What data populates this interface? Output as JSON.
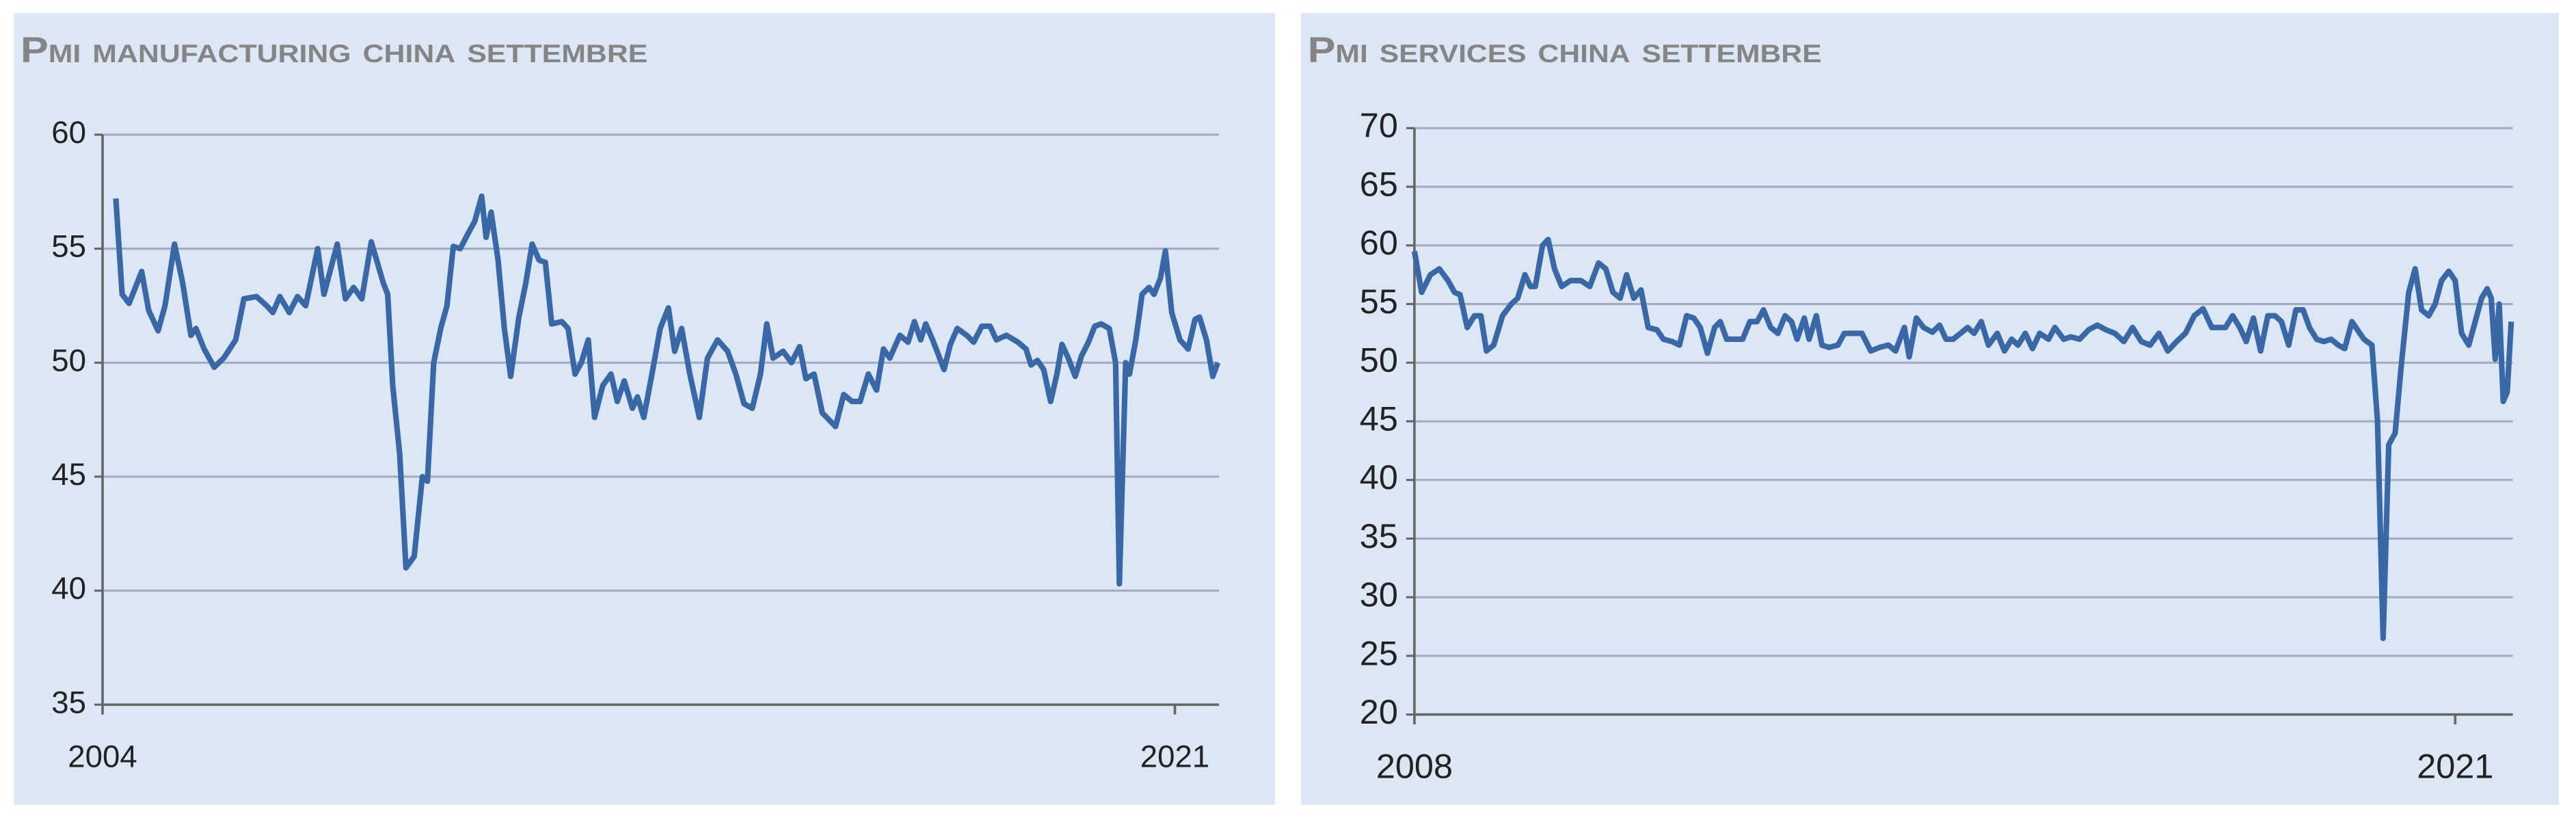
{
  "chart_data": [
    {
      "type": "line",
      "title": "Pmi manufacturing china settembre",
      "color": "#3a68a6",
      "xlim": [
        2004,
        2021.7
      ],
      "xticks": [
        2004,
        2021
      ],
      "ylim": [
        35,
        60
      ],
      "yticks": [
        35,
        40,
        45,
        50,
        55,
        60
      ],
      "grid": true,
      "x": [
        2004.21,
        2004.31,
        2004.42,
        2004.62,
        2004.73,
        2004.88,
        2004.99,
        2005.14,
        2005.27,
        2005.4,
        2005.48,
        2005.61,
        2005.77,
        2005.92,
        2006.11,
        2006.24,
        2006.44,
        2006.6,
        2006.7,
        2006.81,
        2006.96,
        2007.09,
        2007.22,
        2007.41,
        2007.51,
        2007.72,
        2007.85,
        2007.98,
        2008.11,
        2008.26,
        2008.45,
        2008.52,
        2008.6,
        2008.71,
        2008.81,
        2008.94,
        2009.07,
        2009.15,
        2009.25,
        2009.36,
        2009.46,
        2009.56,
        2009.67,
        2009.82,
        2009.9,
        2010.01,
        2010.08,
        2010.16,
        2010.27,
        2010.37,
        2010.47,
        2010.6,
        2010.71,
        2010.81,
        2010.92,
        2011.02,
        2011.12,
        2011.28,
        2011.38,
        2011.49,
        2011.59,
        2011.7,
        2011.8,
        2011.93,
        2012.06,
        2012.16,
        2012.27,
        2012.4,
        2012.48,
        2012.58,
        2012.71,
        2012.84,
        2012.97,
        2013.07,
        2013.18,
        2013.31,
        2013.46,
        2013.59,
        2013.75,
        2013.91,
        2014.04,
        2014.17,
        2014.3,
        2014.43,
        2014.53,
        2014.63,
        2014.79,
        2014.92,
        2015.05,
        2015.15,
        2015.28,
        2015.41,
        2015.62,
        2015.75,
        2015.88,
        2016.01,
        2016.14,
        2016.27,
        2016.38,
        2016.48,
        2016.64,
        2016.77,
        2016.87,
        2016.97,
        2017.05,
        2017.16,
        2017.34,
        2017.44,
        2017.55,
        2017.7,
        2017.81,
        2017.94,
        2018.07,
        2018.17,
        2018.33,
        2018.51,
        2018.64,
        2018.72,
        2018.82,
        2018.92,
        2019.03,
        2019.13,
        2019.21,
        2019.31,
        2019.42,
        2019.52,
        2019.63,
        2019.73,
        2019.83,
        2019.96,
        2020.06,
        2020.12,
        2020.22,
        2020.28,
        2020.38,
        2020.48,
        2020.59,
        2020.67,
        2020.77,
        2020.85,
        2020.95,
        2021.08,
        2021.21,
        2021.32,
        2021.39,
        2021.5,
        2021.6,
        2021.68
      ],
      "values": [
        57.2,
        53.0,
        52.6,
        54.0,
        52.3,
        51.4,
        52.5,
        55.2,
        53.5,
        51.2,
        51.5,
        50.6,
        49.8,
        50.2,
        51.0,
        52.8,
        52.9,
        52.5,
        52.2,
        52.9,
        52.2,
        52.9,
        52.5,
        55.0,
        53.0,
        55.2,
        52.8,
        53.3,
        52.8,
        55.3,
        53.5,
        53.0,
        49.0,
        46.0,
        41.0,
        41.5,
        45.0,
        44.8,
        50.0,
        51.5,
        52.5,
        55.1,
        55.0,
        55.8,
        56.2,
        57.3,
        55.5,
        56.6,
        54.5,
        51.5,
        49.4,
        52.0,
        53.5,
        55.2,
        54.5,
        54.4,
        51.7,
        51.8,
        51.5,
        49.5,
        50.0,
        51.0,
        47.6,
        49.0,
        49.5,
        48.3,
        49.2,
        48.0,
        48.5,
        47.6,
        49.5,
        51.5,
        52.4,
        50.5,
        51.5,
        49.5,
        47.6,
        50.2,
        51.0,
        50.5,
        49.5,
        48.2,
        48.0,
        49.5,
        51.7,
        50.2,
        50.5,
        50.0,
        50.7,
        49.3,
        49.5,
        47.8,
        47.2,
        48.6,
        48.3,
        48.3,
        49.5,
        48.8,
        50.6,
        50.2,
        51.2,
        50.9,
        51.8,
        51.0,
        51.7,
        51.0,
        49.7,
        50.8,
        51.5,
        51.2,
        50.9,
        51.6,
        51.6,
        51.0,
        51.2,
        50.9,
        50.6,
        49.9,
        50.1,
        49.7,
        48.3,
        49.5,
        50.8,
        50.2,
        49.4,
        50.3,
        50.9,
        51.6,
        51.7,
        51.5,
        50.0,
        40.3,
        50.0,
        49.5,
        51.0,
        53.0,
        53.3,
        53.0,
        53.7,
        54.9,
        52.2,
        51.0,
        50.6,
        51.9,
        52.0,
        51.0,
        49.4,
        50.0
      ]
    },
    {
      "type": "line",
      "title": "Pmi services china settembre",
      "color": "#3a68a6",
      "xlim": [
        2008,
        2021.72
      ],
      "xticks": [
        2008,
        2021
      ],
      "ylim": [
        20,
        70
      ],
      "yticks": [
        20,
        25,
        30,
        35,
        40,
        45,
        50,
        55,
        60,
        65,
        70
      ],
      "grid": true,
      "x": [
        2008.0,
        2008.09,
        2008.2,
        2008.31,
        2008.42,
        2008.5,
        2008.57,
        2008.66,
        2008.75,
        2008.83,
        2008.9,
        2008.99,
        2009.1,
        2009.21,
        2009.29,
        2009.38,
        2009.45,
        2009.51,
        2009.6,
        2009.67,
        2009.75,
        2009.84,
        2009.95,
        2010.08,
        2010.19,
        2010.3,
        2010.39,
        2010.48,
        2010.57,
        2010.65,
        2010.74,
        2010.83,
        2010.92,
        2011.03,
        2011.11,
        2011.22,
        2011.31,
        2011.4,
        2011.49,
        2011.57,
        2011.66,
        2011.75,
        2011.82,
        2011.9,
        2011.99,
        2012.1,
        2012.19,
        2012.28,
        2012.36,
        2012.45,
        2012.54,
        2012.63,
        2012.71,
        2012.78,
        2012.87,
        2012.93,
        2013.02,
        2013.09,
        2013.18,
        2013.29,
        2013.37,
        2013.48,
        2013.59,
        2013.7,
        2013.81,
        2013.92,
        2014.01,
        2014.12,
        2014.18,
        2014.27,
        2014.36,
        2014.47,
        2014.56,
        2014.64,
        2014.73,
        2014.82,
        2014.91,
        2014.99,
        2015.08,
        2015.17,
        2015.28,
        2015.37,
        2015.46,
        2015.54,
        2015.63,
        2015.72,
        2015.81,
        2015.92,
        2016.0,
        2016.11,
        2016.2,
        2016.31,
        2016.42,
        2016.53,
        2016.64,
        2016.75,
        2016.86,
        2016.97,
        2017.08,
        2017.19,
        2017.3,
        2017.41,
        2017.52,
        2017.63,
        2017.74,
        2017.85,
        2017.96,
        2018.04,
        2018.13,
        2018.22,
        2018.31,
        2018.39,
        2018.48,
        2018.57,
        2018.66,
        2018.75,
        2018.83,
        2018.92,
        2019.01,
        2019.1,
        2019.18,
        2019.27,
        2019.36,
        2019.45,
        2019.54,
        2019.62,
        2019.71,
        2019.78,
        2019.86,
        2019.96,
        2020.03,
        2020.1,
        2020.17,
        2020.25,
        2020.33,
        2020.42,
        2020.5,
        2020.58,
        2020.67,
        2020.75,
        2020.83,
        2020.92,
        2021.0,
        2021.08,
        2021.17,
        2021.25,
        2021.33,
        2021.4,
        2021.45,
        2021.5,
        2021.55,
        2021.6,
        2021.65,
        2021.7
      ],
      "values": [
        59.5,
        56.0,
        57.5,
        58.0,
        57.0,
        56.0,
        55.8,
        53.0,
        54.0,
        54.0,
        51.0,
        51.5,
        54.0,
        55.0,
        55.5,
        57.5,
        56.5,
        56.5,
        60.0,
        60.5,
        58.0,
        56.5,
        57.0,
        57.0,
        56.5,
        58.5,
        58.0,
        56.0,
        55.5,
        57.5,
        55.5,
        56.2,
        53.0,
        52.8,
        52.0,
        51.8,
        51.5,
        54.0,
        53.8,
        53.0,
        50.8,
        53.0,
        53.5,
        52.0,
        52.0,
        52.0,
        53.5,
        53.5,
        54.5,
        53.0,
        52.5,
        54.0,
        53.5,
        52.0,
        53.8,
        52.0,
        54.0,
        51.5,
        51.3,
        51.5,
        52.5,
        52.5,
        52.5,
        51.0,
        51.3,
        51.5,
        51.0,
        53.0,
        50.5,
        53.8,
        53.0,
        52.6,
        53.2,
        52.0,
        52.0,
        52.5,
        53.0,
        52.5,
        53.5,
        51.5,
        52.5,
        51.0,
        52.0,
        51.5,
        52.5,
        51.2,
        52.5,
        52.0,
        53.0,
        52.0,
        52.2,
        52.0,
        52.8,
        53.2,
        52.8,
        52.5,
        51.8,
        53.0,
        51.8,
        51.5,
        52.5,
        51.0,
        51.8,
        52.5,
        54.0,
        54.6,
        53.0,
        53.0,
        53.0,
        54.0,
        53.0,
        51.8,
        53.8,
        51.0,
        54.0,
        54.0,
        53.5,
        51.5,
        54.5,
        54.5,
        53.0,
        52.0,
        51.8,
        52.0,
        51.5,
        51.2,
        53.5,
        52.8,
        52.0,
        51.5,
        45.0,
        26.5,
        43.0,
        44.0,
        50.0,
        56.0,
        58.0,
        54.5,
        54.0,
        55.0,
        57.0,
        57.8,
        57.0,
        52.5,
        51.5,
        53.5,
        55.5,
        56.3,
        55.5,
        50.3,
        55.0,
        46.7,
        47.5,
        53.5
      ]
    }
  ]
}
